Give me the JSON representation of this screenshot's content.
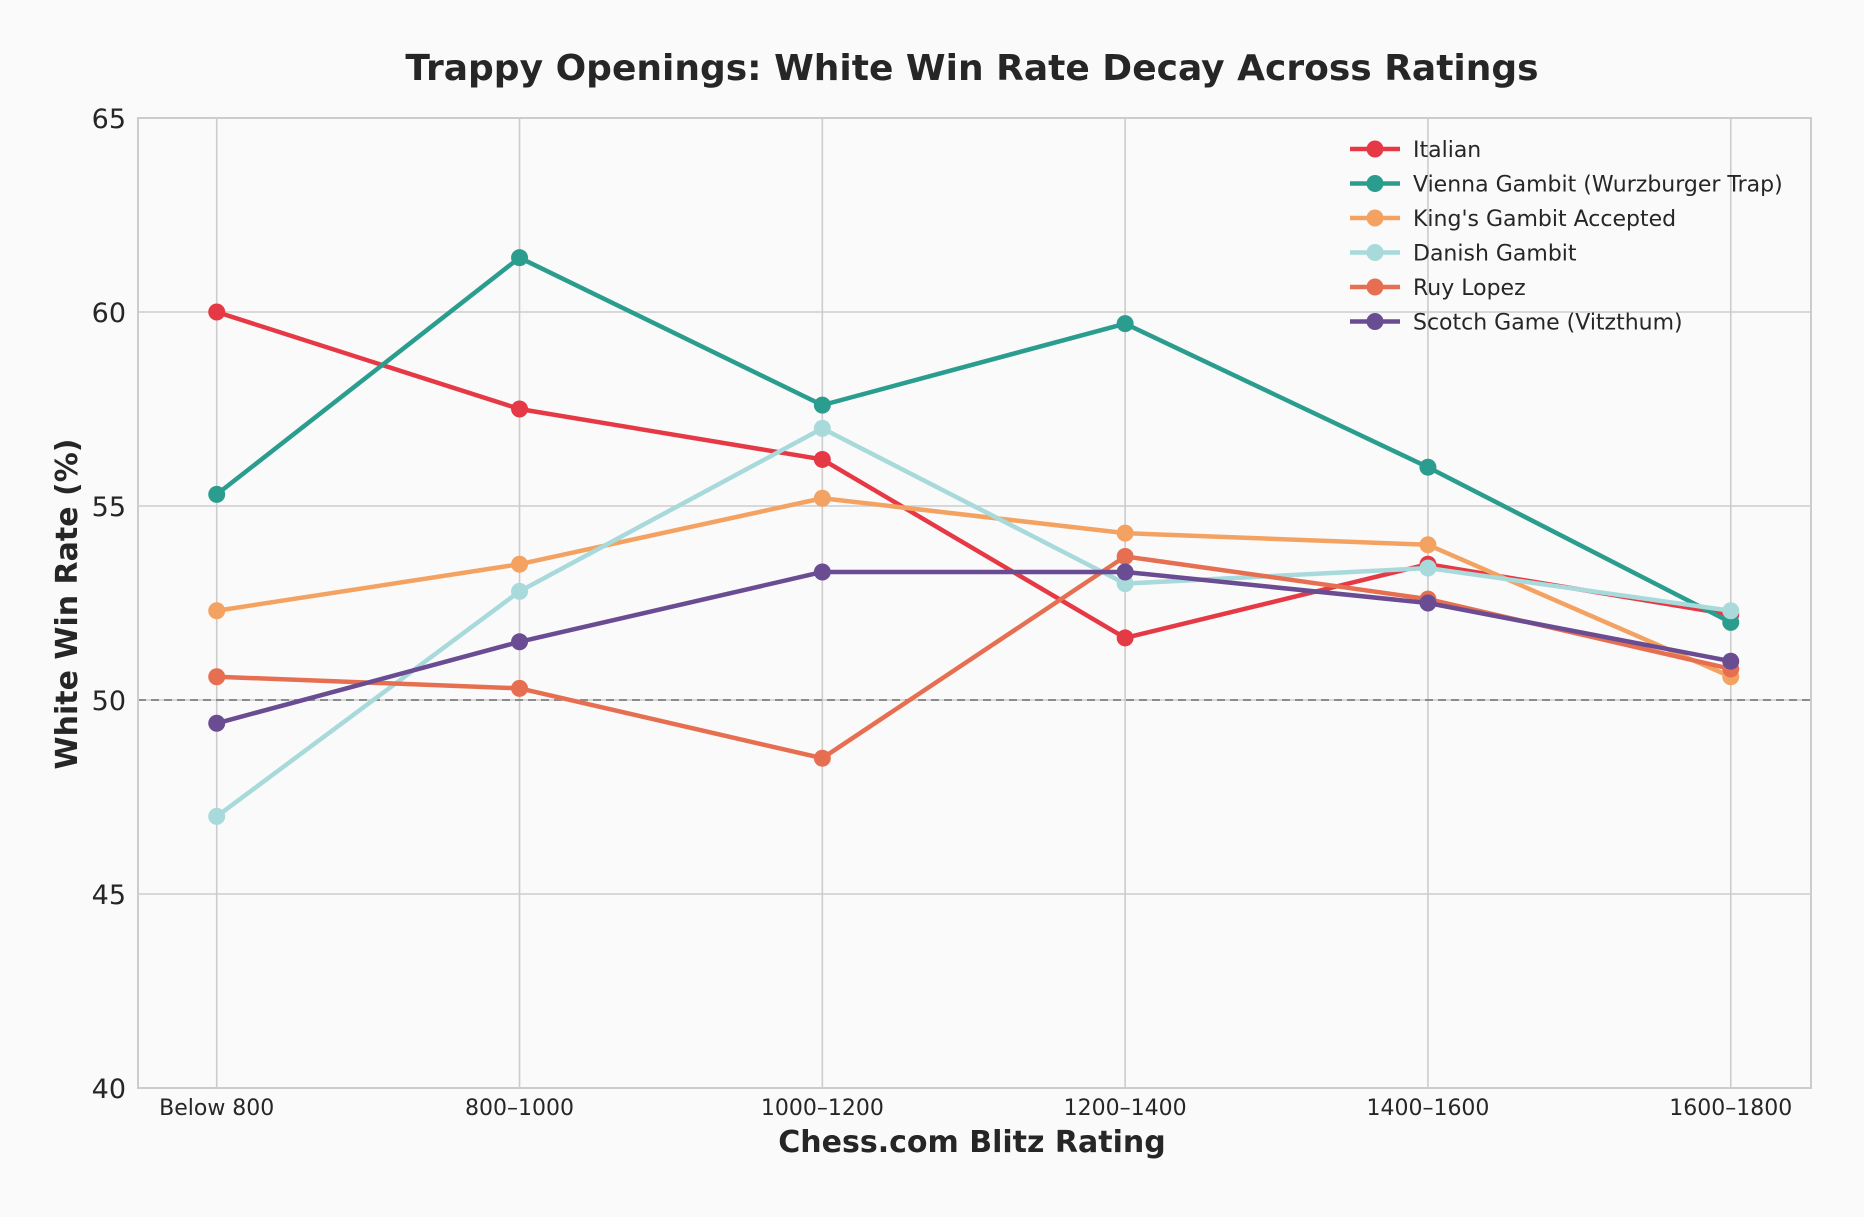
{
  "chart_data": {
    "type": "line",
    "title": "Trappy Openings: White Win Rate Decay Across Ratings",
    "xlabel": "Chess.com Blitz Rating",
    "ylabel": "White Win Rate (%)",
    "categories": [
      "Below 800",
      "800–1000",
      "1000–1200",
      "1200–1400",
      "1400–1600",
      "1600–1800"
    ],
    "x": [
      700,
      900,
      1100,
      1300,
      1500,
      1700
    ],
    "xlim": [
      648,
      1753
    ],
    "ylim": [
      40,
      65
    ],
    "yticks": [
      40,
      45,
      50,
      55,
      60,
      65
    ],
    "reference_line": 50,
    "grid": true,
    "legend_position": "top-right",
    "series": [
      {
        "name": "Italian",
        "color": "#e63946",
        "values": [
          60.0,
          57.5,
          56.2,
          51.6,
          53.5,
          52.2
        ]
      },
      {
        "name": "Vienna Gambit (Wurzburger Trap)",
        "color": "#2a9d8f",
        "values": [
          55.3,
          61.4,
          57.6,
          59.7,
          56.0,
          52.0
        ]
      },
      {
        "name": "King's Gambit Accepted",
        "color": "#f4a261",
        "values": [
          52.3,
          53.5,
          55.2,
          54.3,
          54.0,
          50.6
        ]
      },
      {
        "name": "Danish Gambit",
        "color": "#a8dadc",
        "values": [
          47.0,
          52.8,
          57.0,
          53.0,
          53.4,
          52.3
        ]
      },
      {
        "name": "Ruy Lopez",
        "color": "#e76f51",
        "values": [
          50.6,
          50.3,
          48.5,
          53.7,
          52.6,
          50.8
        ]
      },
      {
        "name": "Scotch Game (Vitzthum)",
        "color": "#6a4c93",
        "values": [
          49.4,
          51.5,
          53.3,
          53.3,
          52.5,
          51.0
        ]
      }
    ]
  }
}
